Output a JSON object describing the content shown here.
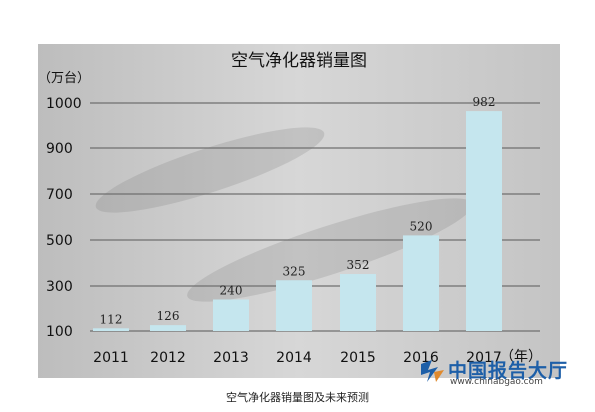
{
  "chart_data": {
    "type": "bar",
    "title": "空气净化器销量图",
    "ylabel": "（万台）",
    "xlabel": "（年）",
    "categories": [
      "2011",
      "2012",
      "2013",
      "2014",
      "2015",
      "2016",
      "2017"
    ],
    "values": [
      112,
      126,
      240,
      325,
      352,
      520,
      982
    ],
    "data_labels": [
      "112",
      "126",
      "240",
      "325",
      "352",
      "520",
      "982"
    ],
    "y_ticks": [
      "100",
      "300",
      "500",
      "700",
      "900",
      "1000"
    ],
    "grid": true,
    "legend": "none",
    "bar_color": "#c5e6ee",
    "background_color": "#c8c8c8"
  },
  "caption": "空气净化器销量图及未来预测",
  "logo": {
    "name": "中国报告大厅",
    "url": "www.chinabgao.com"
  }
}
